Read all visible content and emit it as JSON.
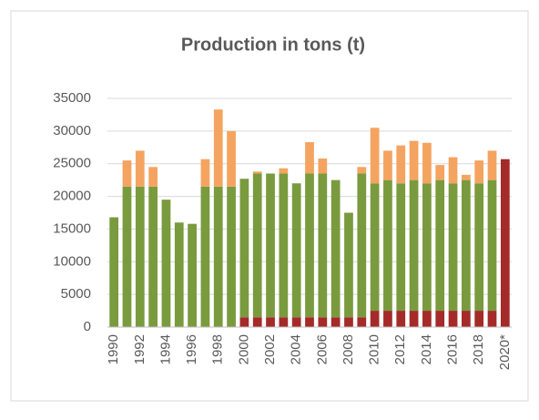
{
  "chart_data": {
    "type": "stacked-bar",
    "title": "Production in tons (t)",
    "categories": [
      "1990",
      null,
      "1992",
      null,
      "1994",
      null,
      "1996",
      null,
      "1998",
      null,
      "2000",
      null,
      "2002",
      null,
      "2004",
      null,
      "2006",
      null,
      "2008",
      null,
      "2010",
      null,
      "2012",
      null,
      "2014",
      null,
      "2016",
      null,
      "2018",
      null,
      "2020*"
    ],
    "series": [
      {
        "color": "#a52a2a",
        "values": [
          0,
          0,
          0,
          0,
          0,
          0,
          0,
          0,
          0,
          0,
          1500,
          1500,
          1500,
          1500,
          1500,
          1500,
          1500,
          1500,
          1500,
          1500,
          2500,
          2500,
          2500,
          2500,
          2500,
          2500,
          2500,
          2500,
          2500,
          2500,
          25700
        ]
      },
      {
        "color": "#7a9a3e",
        "values": [
          16800,
          21500,
          21500,
          21500,
          19500,
          16000,
          15800,
          21500,
          21500,
          21500,
          21200,
          22000,
          22000,
          22000,
          20500,
          22000,
          22000,
          21000,
          16000,
          22000,
          19500,
          20000,
          19500,
          20000,
          19500,
          20000,
          19500,
          20000,
          19500,
          20000,
          0
        ]
      },
      {
        "color": "#f4a460",
        "values": [
          0,
          4000,
          5500,
          3000,
          0,
          0,
          0,
          4200,
          11800,
          8500,
          0,
          300,
          0,
          800,
          0,
          4800,
          2300,
          0,
          0,
          1000,
          8500,
          4500,
          5800,
          6000,
          6200,
          2300,
          4000,
          800,
          3500,
          4500,
          0
        ]
      }
    ],
    "ylim": [
      0,
      35000
    ],
    "yticks": [
      0,
      5000,
      10000,
      15000,
      20000,
      25000,
      30000,
      35000
    ],
    "grid": true
  }
}
